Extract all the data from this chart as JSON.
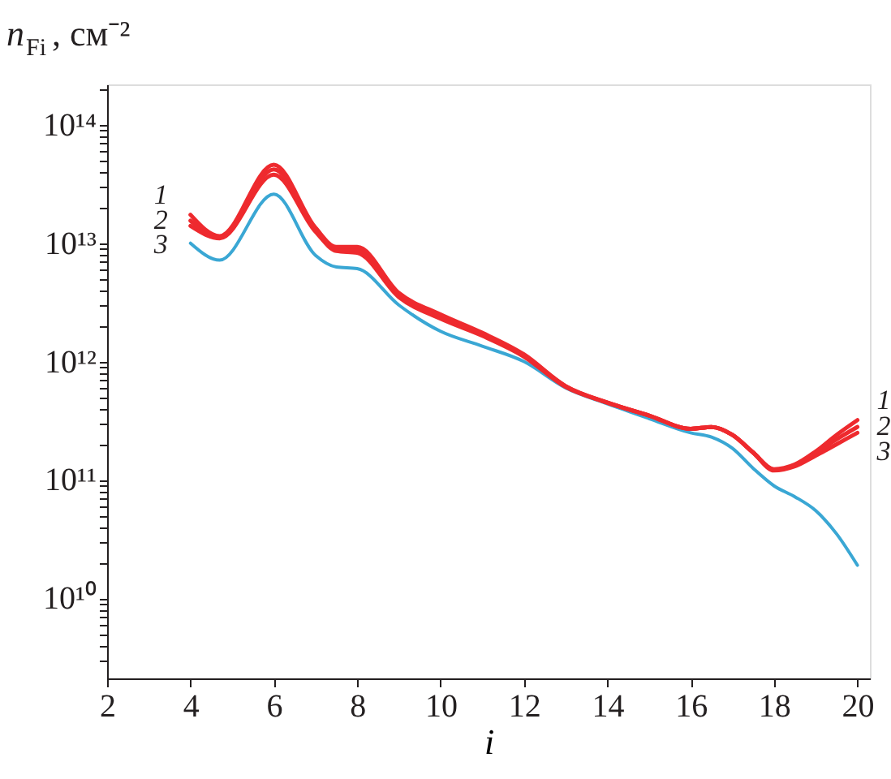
{
  "chart_data": {
    "type": "line",
    "xlabel": "i",
    "ylabel": "n$_{Fi}$, см⁻²",
    "log": "y",
    "grid": false,
    "marker": "none",
    "line_style": "solid",
    "xlim": [
      2,
      20.3
    ],
    "xticks": [
      2,
      4,
      6,
      8,
      10,
      12,
      14,
      16,
      18,
      20
    ],
    "ylim": [
      2100000000.0,
      220000000000000.0
    ],
    "yticks": [
      {
        "value": 3000000000.0,
        "label": null
      },
      {
        "value": 4000000000.0,
        "label": null
      },
      {
        "value": 5000000000.0,
        "label": null
      },
      {
        "value": 6000000000.0,
        "label": null
      },
      {
        "value": 7000000000.0,
        "label": null
      },
      {
        "value": 8000000000.0,
        "label": null
      },
      {
        "value": 9000000000.0,
        "label": null
      },
      {
        "value": 10000000000.0,
        "label": "10¹⁰"
      },
      {
        "value": 20000000000.0,
        "label": null
      },
      {
        "value": 30000000000.0,
        "label": null
      },
      {
        "value": 40000000000.0,
        "label": null
      },
      {
        "value": 50000000000.0,
        "label": null
      },
      {
        "value": 60000000000.0,
        "label": null
      },
      {
        "value": 70000000000.0,
        "label": null
      },
      {
        "value": 80000000000.0,
        "label": null
      },
      {
        "value": 90000000000.0,
        "label": null
      },
      {
        "value": 100000000000.0,
        "label": "10¹¹"
      },
      {
        "value": 200000000000.0,
        "label": null
      },
      {
        "value": 300000000000.0,
        "label": null
      },
      {
        "value": 400000000000.0,
        "label": null
      },
      {
        "value": 500000000000.0,
        "label": null
      },
      {
        "value": 600000000000.0,
        "label": null
      },
      {
        "value": 700000000000.0,
        "label": null
      },
      {
        "value": 800000000000.0,
        "label": null
      },
      {
        "value": 900000000000.0,
        "label": null
      },
      {
        "value": 1000000000000.0,
        "label": "10¹²"
      },
      {
        "value": 2000000000000.0,
        "label": null
      },
      {
        "value": 3000000000000.0,
        "label": null
      },
      {
        "value": 4000000000000.0,
        "label": null
      },
      {
        "value": 5000000000000.0,
        "label": null
      },
      {
        "value": 6000000000000.0,
        "label": null
      },
      {
        "value": 7000000000000.0,
        "label": null
      },
      {
        "value": 8000000000000.0,
        "label": null
      },
      {
        "value": 9000000000000.0,
        "label": null
      },
      {
        "value": 10000000000000.0,
        "label": "10¹³"
      },
      {
        "value": 20000000000000.0,
        "label": null
      },
      {
        "value": 30000000000000.0,
        "label": null
      },
      {
        "value": 40000000000000.0,
        "label": null
      },
      {
        "value": 50000000000000.0,
        "label": null
      },
      {
        "value": 60000000000000.0,
        "label": null
      },
      {
        "value": 70000000000000.0,
        "label": null
      },
      {
        "value": 80000000000000.0,
        "label": null
      },
      {
        "value": 90000000000000.0,
        "label": null
      },
      {
        "value": 100000000000000.0,
        "label": "10¹⁴"
      },
      {
        "value": 200000000000000.0,
        "label": null
      }
    ],
    "x": [
      4,
      4.7,
      6,
      7,
      7.5,
      8,
      9,
      10,
      11,
      12,
      13,
      14,
      15,
      16,
      16.5,
      17,
      17.5,
      18,
      18.5,
      19,
      19.5,
      20
    ],
    "series": [
      {
        "color": "#3aa7d4",
        "values": [
          10000000000000.0,
          7200000000000.0,
          26000000000000.0,
          7900000000000.0,
          6300000000000.0,
          6100000000000.0,
          3000000000000.0,
          1800000000000.0,
          1350000000000.0,
          1000000000000.0,
          600000000000.0,
          440000000000.0,
          330000000000.0,
          250000000000.0,
          230000000000.0,
          185000000000.0,
          125000000000.0,
          89000000000.0,
          72000000000.0,
          55000000000.0,
          35000000000.0,
          19000000000.0
        ]
      },
      {
        "name": "3",
        "color": "#ee2a2e",
        "values": [
          14000000000000.0,
          11000000000000.0,
          38000000000000.0,
          12500000000000.0,
          8600000000000.0,
          8300000000000.0,
          3500000000000.0,
          2300000000000.0,
          1650000000000.0,
          1100000000000.0,
          610000000000.0,
          450000000000.0,
          350000000000.0,
          270000000000.0,
          280000000000.0,
          240000000000.0,
          170000000000.0,
          120000000000.0,
          130000000000.0,
          160000000000.0,
          200000000000.0,
          250000000000.0
        ]
      },
      {
        "name": "2",
        "color": "#ee2a2e",
        "values": [
          15500000000000.0,
          11200000000000.0,
          42000000000000.0,
          13000000000000.0,
          9000000000000.0,
          8800000000000.0,
          3700000000000.0,
          2400000000000.0,
          1700000000000.0,
          1120000000000.0,
          620000000000.0,
          450000000000.0,
          350000000000.0,
          270000000000.0,
          280000000000.0,
          240000000000.0,
          170000000000.0,
          122000000000.0,
          133000000000.0,
          168000000000.0,
          220000000000.0,
          280000000000.0
        ]
      },
      {
        "name": "1",
        "color": "#ee2a2e",
        "values": [
          17400000000000.0,
          11500000000000.0,
          46000000000000.0,
          13500000000000.0,
          9300000000000.0,
          9300000000000.0,
          3800000000000.0,
          2500000000000.0,
          1750000000000.0,
          1150000000000.0,
          620000000000.0,
          450000000000.0,
          350000000000.0,
          270000000000.0,
          280000000000.0,
          240000000000.0,
          170000000000.0,
          123000000000.0,
          135000000000.0,
          174000000000.0,
          240000000000.0,
          320000000000.0
        ]
      }
    ]
  }
}
